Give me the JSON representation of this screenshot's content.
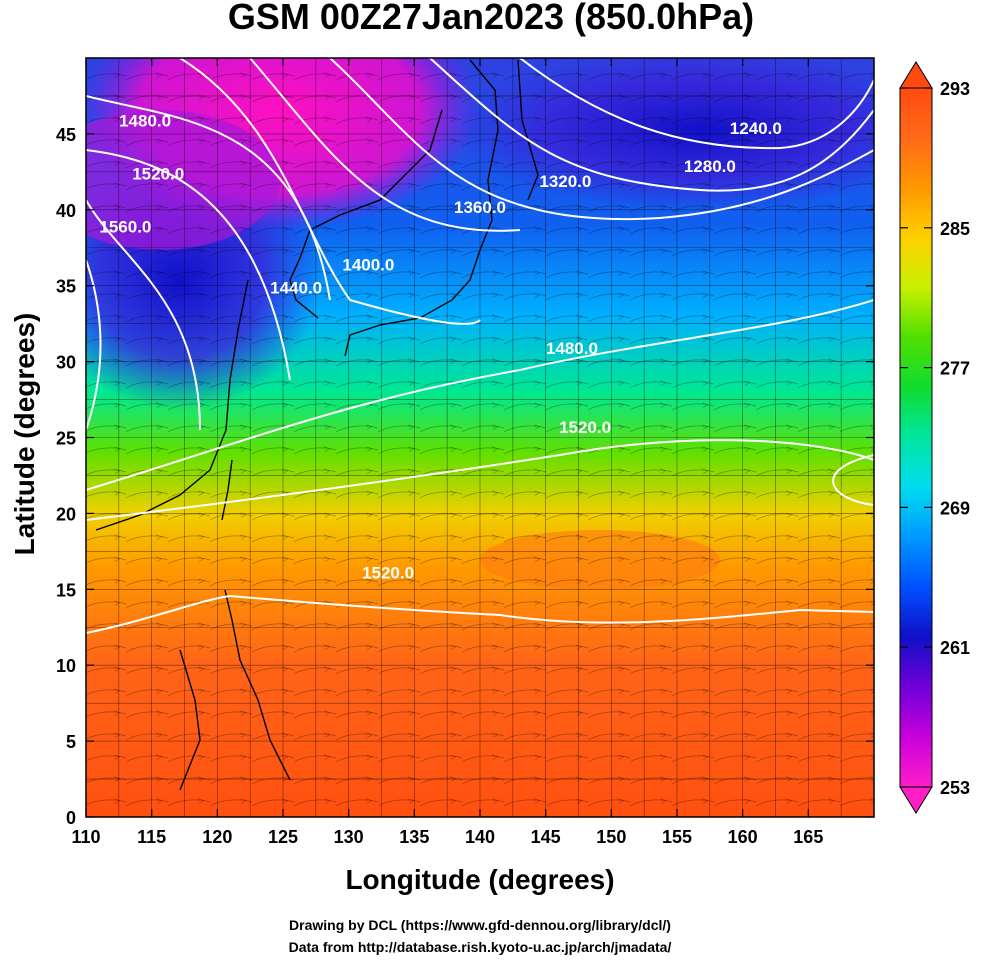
{
  "title": "GSM 00Z27Jan2023 (850.0hPa)",
  "x_axis": {
    "label": "Longitude (degrees)",
    "min": 110,
    "max": 170,
    "ticks": [
      110,
      115,
      120,
      125,
      130,
      135,
      140,
      145,
      150,
      155,
      160,
      165
    ]
  },
  "y_axis": {
    "label": "Latitude  (degrees)",
    "min": 0,
    "max": 50,
    "ticks": [
      0,
      5,
      10,
      15,
      20,
      25,
      30,
      35,
      40,
      45
    ]
  },
  "colorbar": {
    "min": 253,
    "max": 293,
    "ticks": [
      253,
      261,
      269,
      277,
      285,
      293
    ],
    "colors": [
      "#ff1ec8",
      "#c800dc",
      "#7000d8",
      "#1010c8",
      "#0050ff",
      "#0098ff",
      "#00dcf0",
      "#00e6a0",
      "#10dc30",
      "#50e000",
      "#c8f000",
      "#ffd000",
      "#ff9800",
      "#ff6a18",
      "#ff4a10"
    ]
  },
  "contours": {
    "levels": [
      "1240.0",
      "1280.0",
      "1320.0",
      "1360.0",
      "1400.0",
      "1440.0",
      "1480.0",
      "1520.0",
      "1560.0"
    ],
    "labels": [
      {
        "text": "1480.0",
        "lon": 114.5,
        "lat": 45.5
      },
      {
        "text": "1520.0",
        "lon": 115.5,
        "lat": 42.0
      },
      {
        "text": "1560.0",
        "lon": 113.0,
        "lat": 38.5
      },
      {
        "text": "1440.0",
        "lon": 126.0,
        "lat": 34.5
      },
      {
        "text": "1400.0",
        "lon": 131.5,
        "lat": 36.0
      },
      {
        "text": "1360.0",
        "lon": 140.0,
        "lat": 39.8
      },
      {
        "text": "1320.0",
        "lon": 146.5,
        "lat": 41.5
      },
      {
        "text": "1280.0",
        "lon": 157.5,
        "lat": 42.5
      },
      {
        "text": "1240.0",
        "lon": 161.0,
        "lat": 45.0
      },
      {
        "text": "1480.0",
        "lon": 147.0,
        "lat": 30.5
      },
      {
        "text": "1520.0",
        "lon": 148.0,
        "lat": 25.3
      },
      {
        "text": "1520.0",
        "lon": 133.0,
        "lat": 15.7
      }
    ]
  },
  "credit": [
    "Drawing by DCL (https://www.gfd-dennou.org/library/dcl/)",
    "Data from http://database.rish.kyoto-u.ac.jp/arch/jmadata/"
  ]
}
